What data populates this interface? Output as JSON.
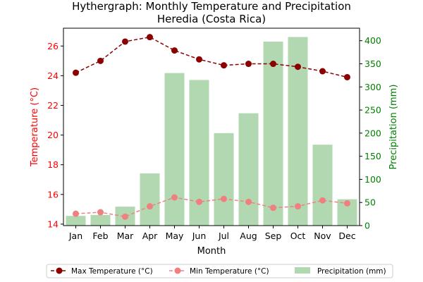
{
  "chart_data": {
    "type": "bar",
    "title": "Hythergraph: Monthly Temperature and Precipitation",
    "subtitle": "Heredia (Costa Rica)",
    "xlabel": "Month",
    "ylabel_left": "Temperature (°C)",
    "ylabel_right": "Precipitation (mm)",
    "categories": [
      "Jan",
      "Feb",
      "Mar",
      "Apr",
      "May",
      "Jun",
      "Jul",
      "Aug",
      "Sep",
      "Oct",
      "Nov",
      "Dec"
    ],
    "ylim_left": [
      13.9,
      27.2
    ],
    "yticks_left": [
      14,
      16,
      18,
      20,
      22,
      24,
      26
    ],
    "ylim_right": [
      0,
      427
    ],
    "yticks_right": [
      0,
      50,
      100,
      150,
      200,
      250,
      300,
      350,
      400
    ],
    "series": [
      {
        "name": "Max Temperature (°C)",
        "kind": "line",
        "axis": "left",
        "color": "#8b0000",
        "linestyle": "dashed",
        "values": [
          24.2,
          25.0,
          26.3,
          26.6,
          25.7,
          25.1,
          24.7,
          24.8,
          24.8,
          24.6,
          24.3,
          23.9
        ]
      },
      {
        "name": "Min Temperature (°C)",
        "kind": "line",
        "axis": "left",
        "color": "#f08080",
        "linestyle": "dashed",
        "values": [
          14.7,
          14.8,
          14.5,
          15.2,
          15.8,
          15.5,
          15.7,
          15.5,
          15.1,
          15.2,
          15.6,
          15.4
        ]
      },
      {
        "name": "Precipitation (mm)",
        "kind": "bar",
        "axis": "right",
        "color": "#b2d8b2",
        "values": [
          21,
          23,
          41,
          113,
          330,
          315,
          200,
          243,
          398,
          408,
          175,
          57
        ]
      }
    ],
    "colors": {
      "left_axis": "#ff0000",
      "right_axis": "#008000"
    },
    "grid": false,
    "legend_position": "bottom-center"
  }
}
